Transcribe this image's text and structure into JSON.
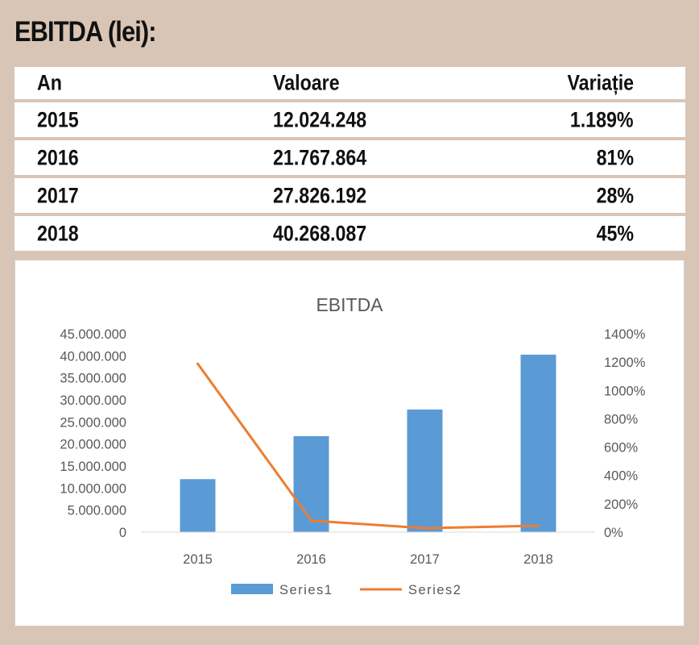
{
  "page_title": "EBITDA (lei):",
  "table": {
    "headers": [
      "An",
      "Valoare",
      "Variație"
    ],
    "rows": [
      [
        "2015",
        "12.024.248",
        "1.189%"
      ],
      [
        "2016",
        "21.767.864",
        "81%"
      ],
      [
        "2017",
        "27.826.192",
        "28%"
      ],
      [
        "2018",
        "40.268.087",
        "45%"
      ]
    ]
  },
  "colors": {
    "bar": "#5b9bd5",
    "line": "#ed7d31",
    "background": "#d9c5b5"
  },
  "chart_data": {
    "type": "bar",
    "title": "EBITDA",
    "categories": [
      "2015",
      "2016",
      "2017",
      "2018"
    ],
    "series": [
      {
        "name": "Series1",
        "type": "bar",
        "axis": "left",
        "values": [
          12024248,
          21767864,
          27826192,
          40268087
        ]
      },
      {
        "name": "Series2",
        "type": "line",
        "axis": "right",
        "values": [
          1189,
          81,
          28,
          45
        ]
      }
    ],
    "ylim_left": [
      0,
      45000000
    ],
    "yticks_left": [
      "0",
      "5.000.000",
      "10.000.000",
      "15.000.000",
      "20.000.000",
      "25.000.000",
      "30.000.000",
      "35.000.000",
      "40.000.000",
      "45.000.000"
    ],
    "ylim_right": [
      0,
      1400
    ],
    "yticks_right": [
      "0%",
      "200%",
      "400%",
      "600%",
      "800%",
      "1000%",
      "1200%",
      "1400%"
    ],
    "grid": false,
    "legend_position": "bottom"
  }
}
